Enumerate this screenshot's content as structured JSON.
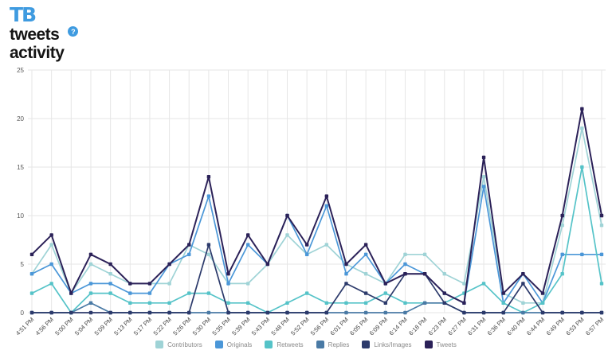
{
  "header": {
    "logo_text": "TB",
    "title_line1": "tweets",
    "title_line2": "activity",
    "help_icon": "?"
  },
  "chart_data": {
    "type": "line",
    "title": "tweets activity",
    "xlabel": "",
    "ylabel": "",
    "ylim": [
      0,
      25
    ],
    "yticks": [
      0,
      5,
      10,
      15,
      20,
      25
    ],
    "grid": true,
    "legend_position": "bottom",
    "x_labels": [
      "4:51 PM",
      "4:56 PM",
      "5:00 PM",
      "5:04 PM",
      "5:09 PM",
      "5:13 PM",
      "5:17 PM",
      "5:22 PM",
      "5:26 PM",
      "5:30 PM",
      "5:35 PM",
      "5:39 PM",
      "5:43 PM",
      "5:48 PM",
      "5:52 PM",
      "5:56 PM",
      "6:01 PM",
      "6:05 PM",
      "6:09 PM",
      "6:14 PM",
      "6:18 PM",
      "6:23 PM",
      "6:27 PM",
      "6:31 PM",
      "6:36 PM",
      "6:40 PM",
      "6:44 PM",
      "6:49 PM",
      "6:53 PM",
      "6:57 PM"
    ],
    "series": [
      {
        "name": "Contributors",
        "color": "#9fd3d6",
        "values": [
          4,
          7,
          2,
          5,
          4,
          3,
          3,
          3,
          7,
          6,
          3,
          3,
          5,
          8,
          6,
          7,
          5,
          4,
          3,
          6,
          6,
          4,
          3,
          14,
          2,
          1,
          1,
          9,
          19,
          9
        ]
      },
      {
        "name": "Originals",
        "color": "#4b97d8",
        "values": [
          4,
          5,
          2,
          3,
          3,
          2,
          2,
          5,
          6,
          12,
          3,
          7,
          5,
          10,
          6,
          11,
          4,
          6,
          3,
          5,
          4,
          2,
          1,
          13,
          1,
          4,
          1,
          6,
          6,
          6
        ]
      },
      {
        "name": "Retweets",
        "color": "#55c3c8",
        "values": [
          2,
          3,
          0,
          2,
          2,
          1,
          1,
          1,
          2,
          2,
          1,
          1,
          0,
          1,
          2,
          1,
          1,
          1,
          2,
          1,
          1,
          1,
          2,
          3,
          1,
          0,
          1,
          4,
          15,
          3
        ]
      },
      {
        "name": "Replies",
        "color": "#4a7aa5",
        "values": [
          0,
          0,
          0,
          1,
          0,
          0,
          0,
          0,
          0,
          0,
          0,
          0,
          0,
          0,
          0,
          0,
          0,
          0,
          0,
          0,
          1,
          1,
          0,
          0,
          0,
          0,
          0,
          0,
          0,
          0
        ]
      },
      {
        "name": "Links/Images",
        "color": "#2c3a6b",
        "values": [
          0,
          0,
          0,
          0,
          0,
          0,
          0,
          0,
          0,
          7,
          0,
          0,
          0,
          0,
          0,
          0,
          3,
          2,
          1,
          4,
          4,
          1,
          0,
          0,
          0,
          3,
          0,
          0,
          0,
          0
        ]
      },
      {
        "name": "Tweets",
        "color": "#2b2158",
        "values": [
          6,
          8,
          2,
          6,
          5,
          3,
          3,
          5,
          7,
          14,
          4,
          8,
          5,
          10,
          7,
          12,
          5,
          7,
          3,
          4,
          4,
          2,
          1,
          16,
          2,
          4,
          2,
          10,
          21,
          10
        ]
      }
    ],
    "grid_color": "#e6e6e6"
  }
}
